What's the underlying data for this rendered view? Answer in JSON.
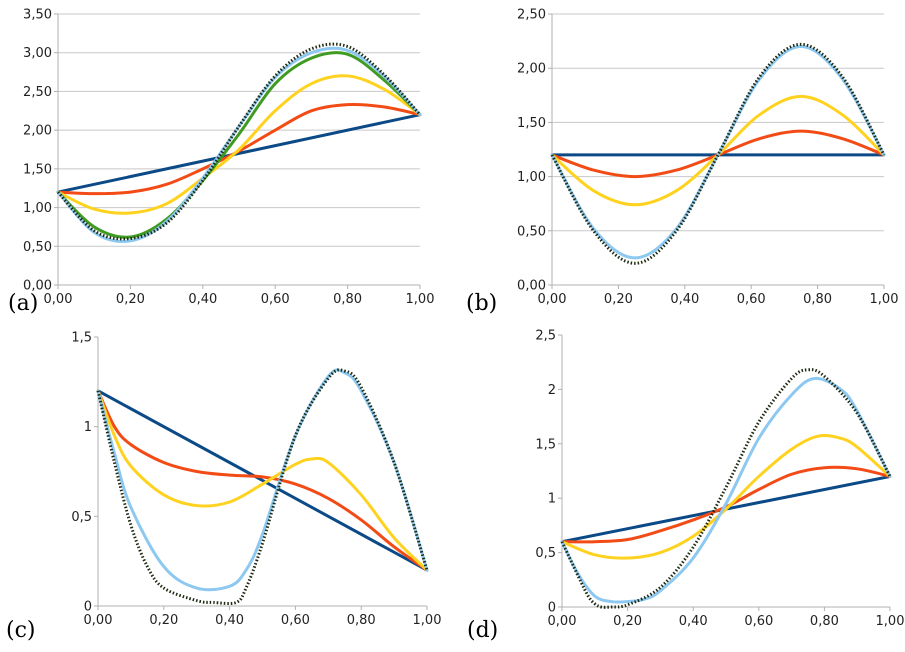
{
  "colors": {
    "blue": "#0b4a86",
    "red": "#f24b16",
    "yellow": "#ffd21f",
    "green": "#3f9b22",
    "lightblue": "#8dc8f0",
    "dotted": "#1f2a12",
    "grid": "#c8c8c8",
    "axis": "#b0b0b0"
  },
  "chart_data": [
    {
      "type": "line",
      "label": "(a)",
      "xlim": [
        0,
        1
      ],
      "ylim": [
        0,
        3.5
      ],
      "xticks": [
        "0,00",
        "0,20",
        "0,40",
        "0,60",
        "0,80",
        "1,00"
      ],
      "yticks": [
        "0,00",
        "0,50",
        "1,00",
        "1,50",
        "2,00",
        "2,50",
        "3,00",
        "3,50"
      ],
      "grid": true,
      "series": [
        {
          "color": "blue",
          "style": "solid",
          "x": [
            0,
            1
          ],
          "y": [
            1.2,
            2.2
          ]
        },
        {
          "color": "red",
          "style": "solid",
          "x": [
            0,
            0.1,
            0.2,
            0.3,
            0.4,
            0.5,
            0.6,
            0.7,
            0.8,
            0.9,
            1.0
          ],
          "y": [
            1.2,
            1.18,
            1.2,
            1.3,
            1.5,
            1.73,
            2.0,
            2.25,
            2.33,
            2.3,
            2.2
          ]
        },
        {
          "color": "yellow",
          "style": "solid",
          "x": [
            0,
            0.1,
            0.2,
            0.3,
            0.4,
            0.5,
            0.6,
            0.7,
            0.8,
            0.9,
            1.0
          ],
          "y": [
            1.2,
            0.98,
            0.93,
            1.05,
            1.38,
            1.75,
            2.25,
            2.6,
            2.7,
            2.53,
            2.2
          ]
        },
        {
          "color": "green",
          "style": "solid",
          "x": [
            0,
            0.1,
            0.2,
            0.3,
            0.4,
            0.5,
            0.6,
            0.7,
            0.8,
            0.9,
            1.0
          ],
          "y": [
            1.2,
            0.75,
            0.62,
            0.85,
            1.35,
            1.95,
            2.6,
            2.93,
            2.98,
            2.65,
            2.2
          ]
        },
        {
          "color": "lightblue",
          "style": "solid",
          "x": [
            0,
            0.1,
            0.2,
            0.3,
            0.4,
            0.5,
            0.6,
            0.7,
            0.8,
            0.9,
            1.0
          ],
          "y": [
            1.2,
            0.68,
            0.57,
            0.82,
            1.38,
            2.05,
            2.68,
            3.0,
            3.03,
            2.7,
            2.2
          ]
        },
        {
          "color": "dotted",
          "style": "dotted",
          "x": [
            0,
            0.1,
            0.2,
            0.3,
            0.4,
            0.5,
            0.6,
            0.7,
            0.8,
            0.9,
            1.0
          ],
          "y": [
            1.2,
            0.7,
            0.6,
            0.8,
            1.35,
            2.05,
            2.7,
            3.05,
            3.08,
            2.72,
            2.2
          ]
        }
      ]
    },
    {
      "type": "line",
      "label": "(b)",
      "xlim": [
        0,
        1
      ],
      "ylim": [
        0,
        2.5
      ],
      "xticks": [
        "0,00",
        "0,20",
        "0,40",
        "0,60",
        "0,80",
        "1,00"
      ],
      "yticks": [
        "0,00",
        "0,50",
        "1,00",
        "1,50",
        "2,00",
        "2,50"
      ],
      "grid": true,
      "series": [
        {
          "color": "blue",
          "style": "solid",
          "x": [
            0,
            1
          ],
          "y": [
            1.2,
            1.2
          ]
        },
        {
          "color": "red",
          "style": "solid",
          "x": [
            0,
            0.125,
            0.25,
            0.375,
            0.5,
            0.625,
            0.75,
            0.875,
            1.0
          ],
          "y": [
            1.2,
            1.06,
            1.0,
            1.06,
            1.2,
            1.35,
            1.42,
            1.35,
            1.2
          ]
        },
        {
          "color": "yellow",
          "style": "solid",
          "x": [
            0,
            0.125,
            0.25,
            0.375,
            0.5,
            0.625,
            0.75,
            0.875,
            1.0
          ],
          "y": [
            1.2,
            0.87,
            0.74,
            0.87,
            1.2,
            1.57,
            1.74,
            1.57,
            1.2
          ]
        },
        {
          "color": "lightblue",
          "style": "solid",
          "x": [
            0,
            0.125,
            0.25,
            0.375,
            0.5,
            0.625,
            0.75,
            0.875,
            1.0
          ],
          "y": [
            1.2,
            0.52,
            0.25,
            0.52,
            1.2,
            1.9,
            2.2,
            1.9,
            1.2
          ]
        },
        {
          "color": "dotted",
          "style": "dotted",
          "x": [
            0,
            0.125,
            0.25,
            0.375,
            0.5,
            0.625,
            0.75,
            0.875,
            1.0
          ],
          "y": [
            1.2,
            0.5,
            0.2,
            0.5,
            1.2,
            1.92,
            2.22,
            1.92,
            1.2
          ]
        }
      ]
    },
    {
      "type": "line",
      "label": "(c)",
      "xlim": [
        0,
        1
      ],
      "ylim": [
        0,
        1.5
      ],
      "xticks": [
        "0,00",
        "0,20",
        "0,40",
        "0,60",
        "0,80",
        "1,00"
      ],
      "yticks": [
        "0",
        "0,5",
        "1",
        "1,5"
      ],
      "grid": false,
      "series": [
        {
          "color": "blue",
          "style": "solid",
          "x": [
            0,
            1
          ],
          "y": [
            1.2,
            0.2
          ]
        },
        {
          "color": "red",
          "style": "solid",
          "x": [
            0,
            0.05,
            0.1,
            0.2,
            0.3,
            0.4,
            0.5,
            0.6,
            0.7,
            0.8,
            0.9,
            1.0
          ],
          "y": [
            1.2,
            1.0,
            0.9,
            0.8,
            0.75,
            0.73,
            0.72,
            0.68,
            0.6,
            0.48,
            0.33,
            0.2
          ]
        },
        {
          "color": "yellow",
          "style": "solid",
          "x": [
            0,
            0.05,
            0.1,
            0.2,
            0.3,
            0.4,
            0.5,
            0.6,
            0.65,
            0.7,
            0.8,
            0.9,
            1.0
          ],
          "y": [
            1.2,
            0.95,
            0.78,
            0.62,
            0.56,
            0.58,
            0.68,
            0.79,
            0.82,
            0.8,
            0.62,
            0.38,
            0.2
          ]
        },
        {
          "color": "lightblue",
          "style": "solid",
          "x": [
            0,
            0.05,
            0.1,
            0.2,
            0.3,
            0.4,
            0.45,
            0.5,
            0.6,
            0.7,
            0.75,
            0.8,
            0.9,
            1.0
          ],
          "y": [
            1.2,
            0.85,
            0.55,
            0.22,
            0.1,
            0.11,
            0.2,
            0.4,
            0.95,
            1.28,
            1.3,
            1.2,
            0.8,
            0.2
          ]
        },
        {
          "color": "dotted",
          "style": "dotted",
          "x": [
            0,
            0.05,
            0.1,
            0.15,
            0.2,
            0.3,
            0.35,
            0.42,
            0.45,
            0.5,
            0.6,
            0.7,
            0.75,
            0.8,
            0.9,
            1.0
          ],
          "y": [
            1.2,
            0.8,
            0.45,
            0.22,
            0.1,
            0.03,
            0.02,
            0.02,
            0.1,
            0.35,
            0.95,
            1.27,
            1.31,
            1.22,
            0.8,
            0.2
          ]
        }
      ]
    },
    {
      "type": "line",
      "label": "(d)",
      "xlim": [
        0,
        1
      ],
      "ylim": [
        0,
        2.5
      ],
      "xticks": [
        "0,00",
        "0,20",
        "0,40",
        "0,60",
        "0,80",
        "1,00"
      ],
      "yticks": [
        "0",
        "0,5",
        "1",
        "1,5",
        "2",
        "2,5"
      ],
      "grid": false,
      "series": [
        {
          "color": "blue",
          "style": "solid",
          "x": [
            0,
            1
          ],
          "y": [
            0.6,
            1.2
          ]
        },
        {
          "color": "red",
          "style": "solid",
          "x": [
            0,
            0.1,
            0.2,
            0.3,
            0.4,
            0.5,
            0.6,
            0.7,
            0.8,
            0.9,
            1.0
          ],
          "y": [
            0.6,
            0.6,
            0.62,
            0.7,
            0.8,
            0.92,
            1.08,
            1.22,
            1.28,
            1.27,
            1.2
          ]
        },
        {
          "color": "yellow",
          "style": "solid",
          "x": [
            0,
            0.1,
            0.2,
            0.3,
            0.4,
            0.5,
            0.6,
            0.7,
            0.78,
            0.85,
            0.9,
            1.0
          ],
          "y": [
            0.6,
            0.48,
            0.45,
            0.5,
            0.65,
            0.9,
            1.2,
            1.45,
            1.57,
            1.55,
            1.47,
            1.2
          ]
        },
        {
          "color": "lightblue",
          "style": "solid",
          "x": [
            0,
            0.05,
            0.1,
            0.15,
            0.2,
            0.25,
            0.3,
            0.4,
            0.5,
            0.6,
            0.7,
            0.77,
            0.85,
            0.9,
            1.0
          ],
          "y": [
            0.6,
            0.3,
            0.1,
            0.05,
            0.05,
            0.07,
            0.15,
            0.45,
            0.95,
            1.55,
            1.95,
            2.1,
            2.0,
            1.8,
            1.2
          ]
        },
        {
          "color": "dotted",
          "style": "dotted",
          "x": [
            0,
            0.05,
            0.08,
            0.1,
            0.12,
            0.15,
            0.2,
            0.3,
            0.4,
            0.5,
            0.6,
            0.7,
            0.75,
            0.8,
            0.9,
            1.0
          ],
          "y": [
            0.6,
            0.28,
            0.1,
            0.03,
            0.0,
            0.0,
            0.02,
            0.18,
            0.55,
            1.1,
            1.7,
            2.1,
            2.18,
            2.12,
            1.78,
            1.2
          ]
        }
      ]
    }
  ]
}
